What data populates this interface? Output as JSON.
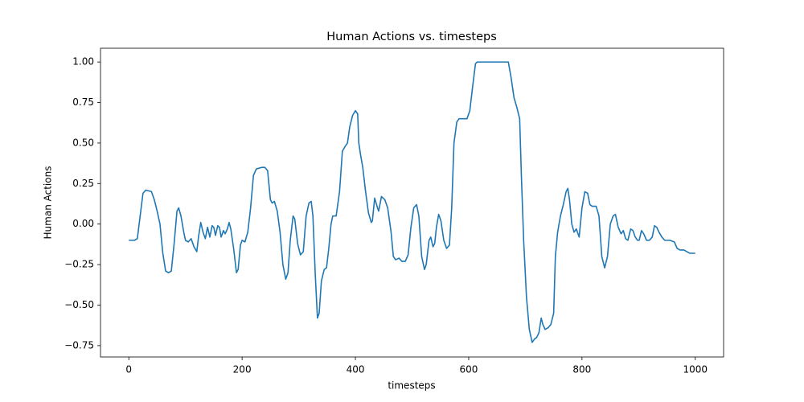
{
  "chart_data": {
    "type": "line",
    "title": "Human Actions vs. timesteps",
    "x_label": "timesteps",
    "y_label": "Human Actions",
    "x": [
      0,
      10,
      15,
      20,
      25,
      30,
      40,
      45,
      50,
      55,
      60,
      65,
      70,
      75,
      80,
      85,
      88,
      92,
      97,
      100,
      105,
      110,
      115,
      120,
      123,
      127,
      131,
      135,
      139,
      143,
      147,
      150,
      153,
      157,
      160,
      163,
      167,
      170,
      174,
      177,
      180,
      185,
      190,
      193,
      197,
      200,
      205,
      210,
      215,
      220,
      225,
      235,
      240,
      245,
      250,
      253,
      257,
      262,
      267,
      272,
      277,
      281,
      285,
      290,
      293,
      298,
      303,
      308,
      313,
      318,
      322,
      325,
      329,
      333,
      336,
      340,
      345,
      349,
      353,
      357,
      360,
      366,
      372,
      377,
      382,
      386,
      390,
      395,
      400,
      404,
      406,
      409,
      413,
      418,
      423,
      428,
      430,
      434,
      439,
      441,
      446,
      452,
      457,
      463,
      467,
      471,
      477,
      482,
      488,
      493,
      498,
      503,
      508,
      512,
      517,
      522,
      525,
      530,
      533,
      537,
      540,
      543,
      547,
      551,
      556,
      561,
      566,
      570,
      574,
      579,
      583,
      597,
      602,
      607,
      612,
      615,
      670,
      675,
      680,
      685,
      690,
      693,
      697,
      702,
      707,
      712,
      716,
      720,
      724,
      728,
      731,
      735,
      740,
      745,
      750,
      753,
      757,
      762,
      767,
      772,
      775,
      778,
      782,
      786,
      790,
      795,
      800,
      805,
      810,
      814,
      818,
      825,
      830,
      835,
      840,
      845,
      850,
      855,
      859,
      864,
      869,
      873,
      877,
      881,
      886,
      890,
      894,
      898,
      901,
      905,
      909,
      914,
      919,
      924,
      928,
      932,
      936,
      941,
      946,
      955,
      963,
      968,
      973,
      980,
      985,
      990,
      1000
    ],
    "series": [
      {
        "name": "Human Actions",
        "color": "#1f77b4",
        "values": [
          -0.1,
          -0.1,
          -0.09,
          0.05,
          0.19,
          0.21,
          0.2,
          0.15,
          0.08,
          0.0,
          -0.18,
          -0.29,
          -0.3,
          -0.29,
          -0.12,
          0.08,
          0.1,
          0.05,
          -0.05,
          -0.1,
          -0.11,
          -0.09,
          -0.14,
          -0.17,
          -0.08,
          0.01,
          -0.05,
          -0.09,
          -0.02,
          -0.08,
          -0.01,
          -0.02,
          -0.07,
          -0.01,
          -0.02,
          -0.08,
          -0.04,
          -0.06,
          -0.03,
          0.01,
          -0.03,
          -0.15,
          -0.3,
          -0.28,
          -0.13,
          -0.1,
          -0.11,
          -0.05,
          0.1,
          0.3,
          0.34,
          0.35,
          0.35,
          0.33,
          0.15,
          0.13,
          0.14,
          0.08,
          -0.05,
          -0.25,
          -0.34,
          -0.3,
          -0.1,
          0.05,
          0.03,
          -0.12,
          -0.19,
          -0.17,
          0.05,
          0.13,
          0.14,
          0.05,
          -0.3,
          -0.58,
          -0.55,
          -0.35,
          -0.28,
          -0.27,
          -0.15,
          0.0,
          0.05,
          0.05,
          0.2,
          0.45,
          0.48,
          0.5,
          0.6,
          0.67,
          0.7,
          0.68,
          0.5,
          0.43,
          0.35,
          0.2,
          0.07,
          0.01,
          0.02,
          0.16,
          0.1,
          0.08,
          0.17,
          0.15,
          0.1,
          -0.05,
          -0.2,
          -0.22,
          -0.21,
          -0.23,
          -0.23,
          -0.19,
          -0.02,
          0.1,
          0.12,
          0.05,
          -0.2,
          -0.28,
          -0.25,
          -0.1,
          -0.08,
          -0.14,
          -0.12,
          -0.02,
          0.06,
          0.02,
          -0.1,
          -0.15,
          -0.13,
          0.1,
          0.5,
          0.63,
          0.65,
          0.65,
          0.7,
          0.85,
          0.99,
          1.0,
          1.0,
          0.9,
          0.78,
          0.72,
          0.65,
          0.3,
          -0.1,
          -0.45,
          -0.65,
          -0.73,
          -0.71,
          -0.7,
          -0.67,
          -0.58,
          -0.62,
          -0.65,
          -0.64,
          -0.62,
          -0.55,
          -0.2,
          -0.05,
          0.05,
          0.12,
          0.2,
          0.22,
          0.15,
          0.0,
          -0.05,
          -0.03,
          -0.08,
          0.1,
          0.2,
          0.19,
          0.12,
          0.11,
          0.11,
          0.05,
          -0.2,
          -0.27,
          -0.2,
          0.0,
          0.05,
          0.06,
          -0.02,
          -0.06,
          -0.04,
          -0.09,
          -0.1,
          -0.03,
          -0.04,
          -0.08,
          -0.1,
          -0.1,
          -0.04,
          -0.06,
          -0.1,
          -0.1,
          -0.08,
          -0.01,
          -0.02,
          -0.05,
          -0.08,
          -0.1,
          -0.1,
          -0.11,
          -0.15,
          -0.16,
          -0.16,
          -0.17,
          -0.18,
          -0.18
        ]
      }
    ],
    "xlim": [
      -50,
      1050
    ],
    "ylim": [
      -0.82,
      1.085
    ],
    "xticks": [
      0,
      200,
      400,
      600,
      800,
      1000
    ],
    "yticks": [
      {
        "value": -0.75,
        "label": "−0.75"
      },
      {
        "value": -0.5,
        "label": "−0.50"
      },
      {
        "value": -0.25,
        "label": "−0.25"
      },
      {
        "value": 0,
        "label": "0.00"
      },
      0.25,
      {
        "value": 0.5,
        "label": "0.50"
      },
      0.75,
      {
        "value": 1,
        "label": "1.00"
      }
    ],
    "grid": false
  }
}
